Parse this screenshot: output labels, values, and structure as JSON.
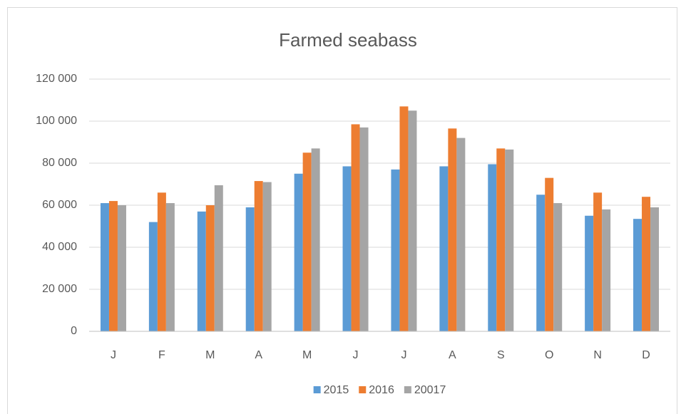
{
  "chart_data": {
    "type": "bar",
    "title": "Farmed seabass",
    "categories": [
      "J",
      "F",
      "M",
      "A",
      "M",
      "J",
      "J",
      "A",
      "S",
      "O",
      "N",
      "D"
    ],
    "series": [
      {
        "name": "2015",
        "color": "#5b9bd5",
        "values": [
          61000,
          52000,
          57000,
          59000,
          75000,
          78500,
          77000,
          78500,
          79500,
          65000,
          55000,
          53500
        ]
      },
      {
        "name": "2016",
        "color": "#ed7d31",
        "values": [
          62000,
          66000,
          60000,
          71500,
          85000,
          98500,
          107000,
          96500,
          87000,
          73000,
          66000,
          64000
        ]
      },
      {
        "name": "20017",
        "color": "#a5a5a5",
        "values": [
          60000,
          61000,
          69500,
          71000,
          87000,
          97000,
          105000,
          92000,
          86500,
          61000,
          58000,
          59000
        ]
      }
    ],
    "ylim": [
      0,
      120000
    ],
    "yticks": [
      0,
      {
        "value": 20000,
        "label": "20 000"
      },
      {
        "value": 40000,
        "label": "40 000"
      },
      {
        "value": 60000,
        "label": "60 000"
      },
      {
        "value": 80000,
        "label": "80 000"
      },
      {
        "value": 100000,
        "label": "100 000"
      },
      {
        "value": 120000,
        "label": "120 000"
      }
    ],
    "grid": true,
    "legend": "bottom"
  }
}
